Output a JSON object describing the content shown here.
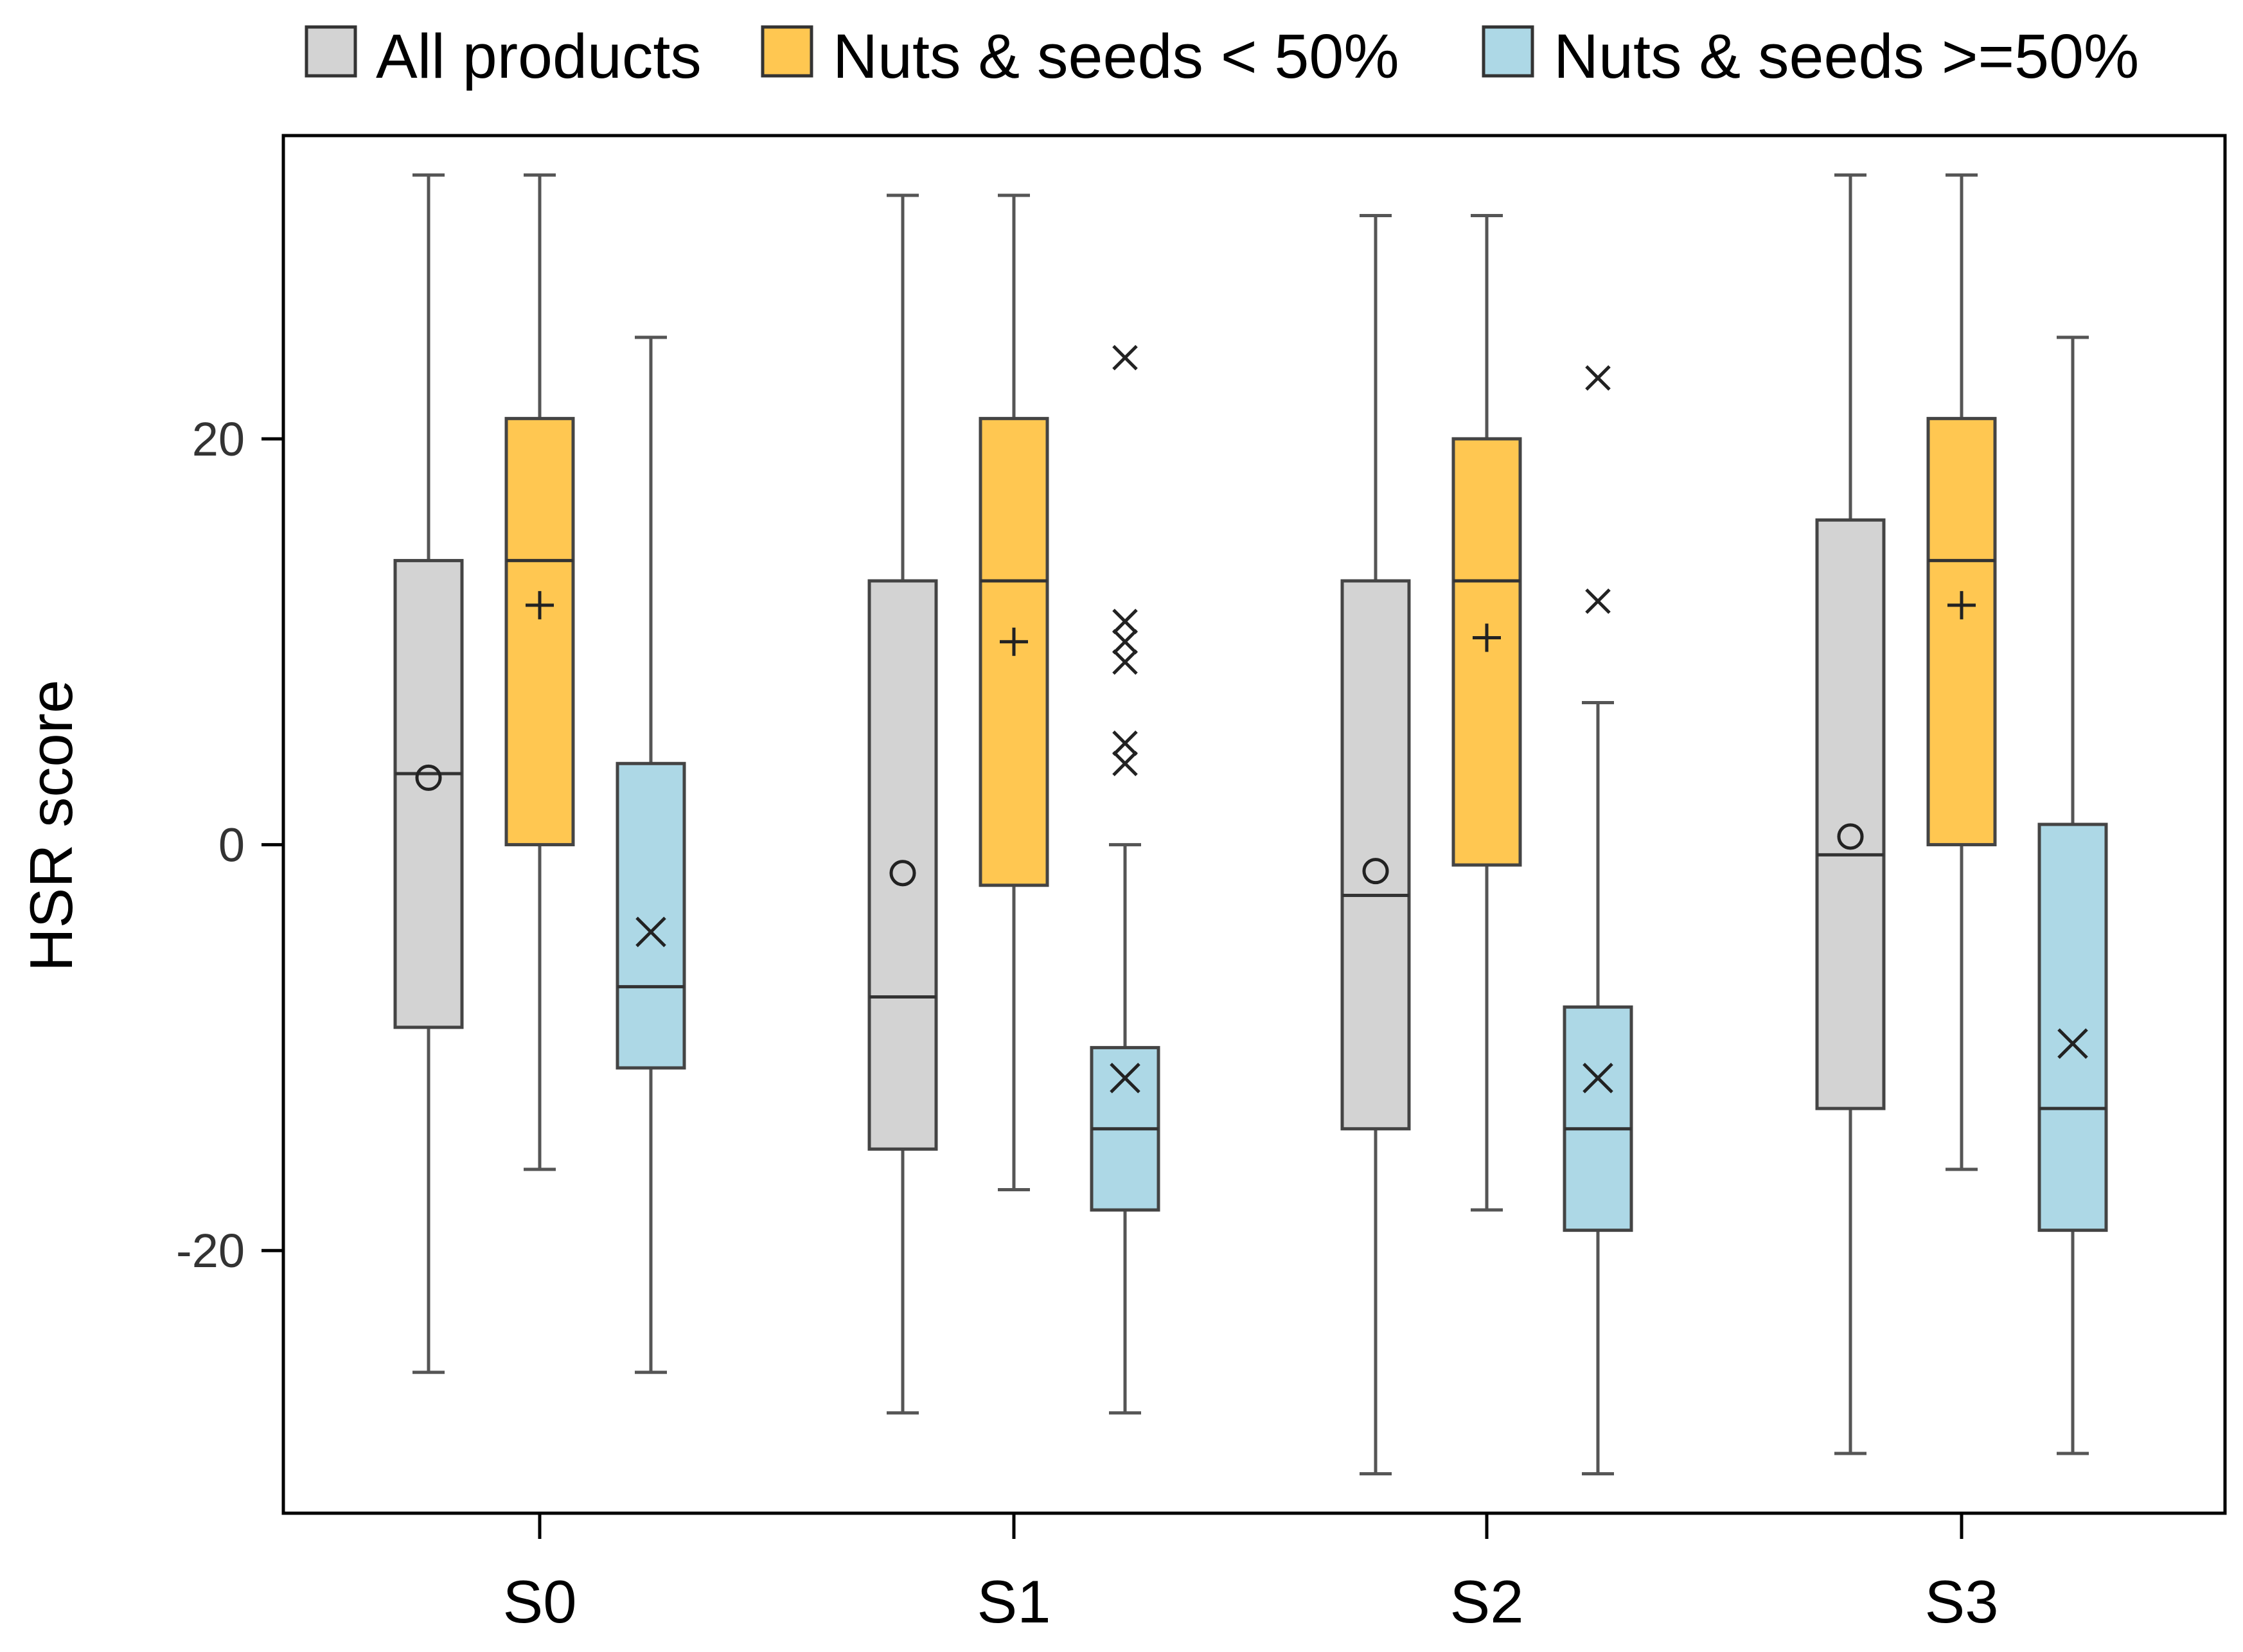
{
  "chart_data": {
    "type": "boxplot",
    "title": "",
    "xlabel": "",
    "ylabel": "HSR score",
    "ylim": [
      -32.5,
      34.5
    ],
    "yticks": [
      -20,
      0,
      20
    ],
    "ytick_labels": [
      "-20",
      "0",
      "20"
    ],
    "categories": [
      "S0",
      "S1",
      "S2",
      "S3"
    ],
    "grid": false,
    "legend": {
      "position": "top"
    },
    "series": [
      {
        "name": "All products",
        "color": "#d3d3d3",
        "mean_marker": "circle",
        "boxes": [
          {
            "category": "S0",
            "whisker_low": -26,
            "q1": -9,
            "median": 3.5,
            "q3": 14,
            "whisker_high": 33,
            "mean": 3.3,
            "outliers": []
          },
          {
            "category": "S1",
            "whisker_low": -28,
            "q1": -15,
            "median": -7.5,
            "q3": 13,
            "whisker_high": 32,
            "mean": -1.4,
            "outliers": []
          },
          {
            "category": "S2",
            "whisker_low": -31,
            "q1": -14,
            "median": -2.5,
            "q3": 13,
            "whisker_high": 31,
            "mean": -1.3,
            "outliers": []
          },
          {
            "category": "S3",
            "whisker_low": -30,
            "q1": -13,
            "median": -0.5,
            "q3": 16,
            "whisker_high": 33,
            "mean": 0.4,
            "outliers": []
          }
        ]
      },
      {
        "name": "Nuts & seeds < 50%",
        "color": "#ffc751",
        "mean_marker": "plus",
        "boxes": [
          {
            "category": "S0",
            "whisker_low": -16,
            "q1": 0,
            "median": 14,
            "q3": 21,
            "whisker_high": 33,
            "mean": 11.8,
            "outliers": []
          },
          {
            "category": "S1",
            "whisker_low": -17,
            "q1": -2,
            "median": 13,
            "q3": 21,
            "whisker_high": 32,
            "mean": 10,
            "outliers": []
          },
          {
            "category": "S2",
            "whisker_low": -18,
            "q1": -1,
            "median": 13,
            "q3": 20,
            "whisker_high": 31,
            "mean": 10.2,
            "outliers": []
          },
          {
            "category": "S3",
            "whisker_low": -16,
            "q1": 0,
            "median": 14,
            "q3": 21,
            "whisker_high": 33,
            "mean": 11.8,
            "outliers": []
          }
        ]
      },
      {
        "name": "Nuts & seeds >=50%",
        "color": "#add8e6",
        "mean_marker": "x",
        "boxes": [
          {
            "category": "S0",
            "whisker_low": -26,
            "q1": -11,
            "median": -7,
            "q3": 4,
            "whisker_high": 25,
            "mean": -4.3,
            "outliers": []
          },
          {
            "category": "S1",
            "whisker_low": -28,
            "q1": -18,
            "median": -14,
            "q3": -10,
            "whisker_high": 0,
            "mean": -11.5,
            "outliers": [
              24,
              11,
              10,
              9,
              5,
              4
            ]
          },
          {
            "category": "S2",
            "whisker_low": -31,
            "q1": -19,
            "median": -14,
            "q3": -8,
            "whisker_high": 7,
            "mean": -11.5,
            "outliers": [
              23,
              12
            ]
          },
          {
            "category": "S3",
            "whisker_low": -30,
            "q1": -19,
            "median": -13,
            "q3": 1,
            "whisker_high": 25,
            "mean": -9.8,
            "outliers": []
          }
        ]
      }
    ]
  }
}
